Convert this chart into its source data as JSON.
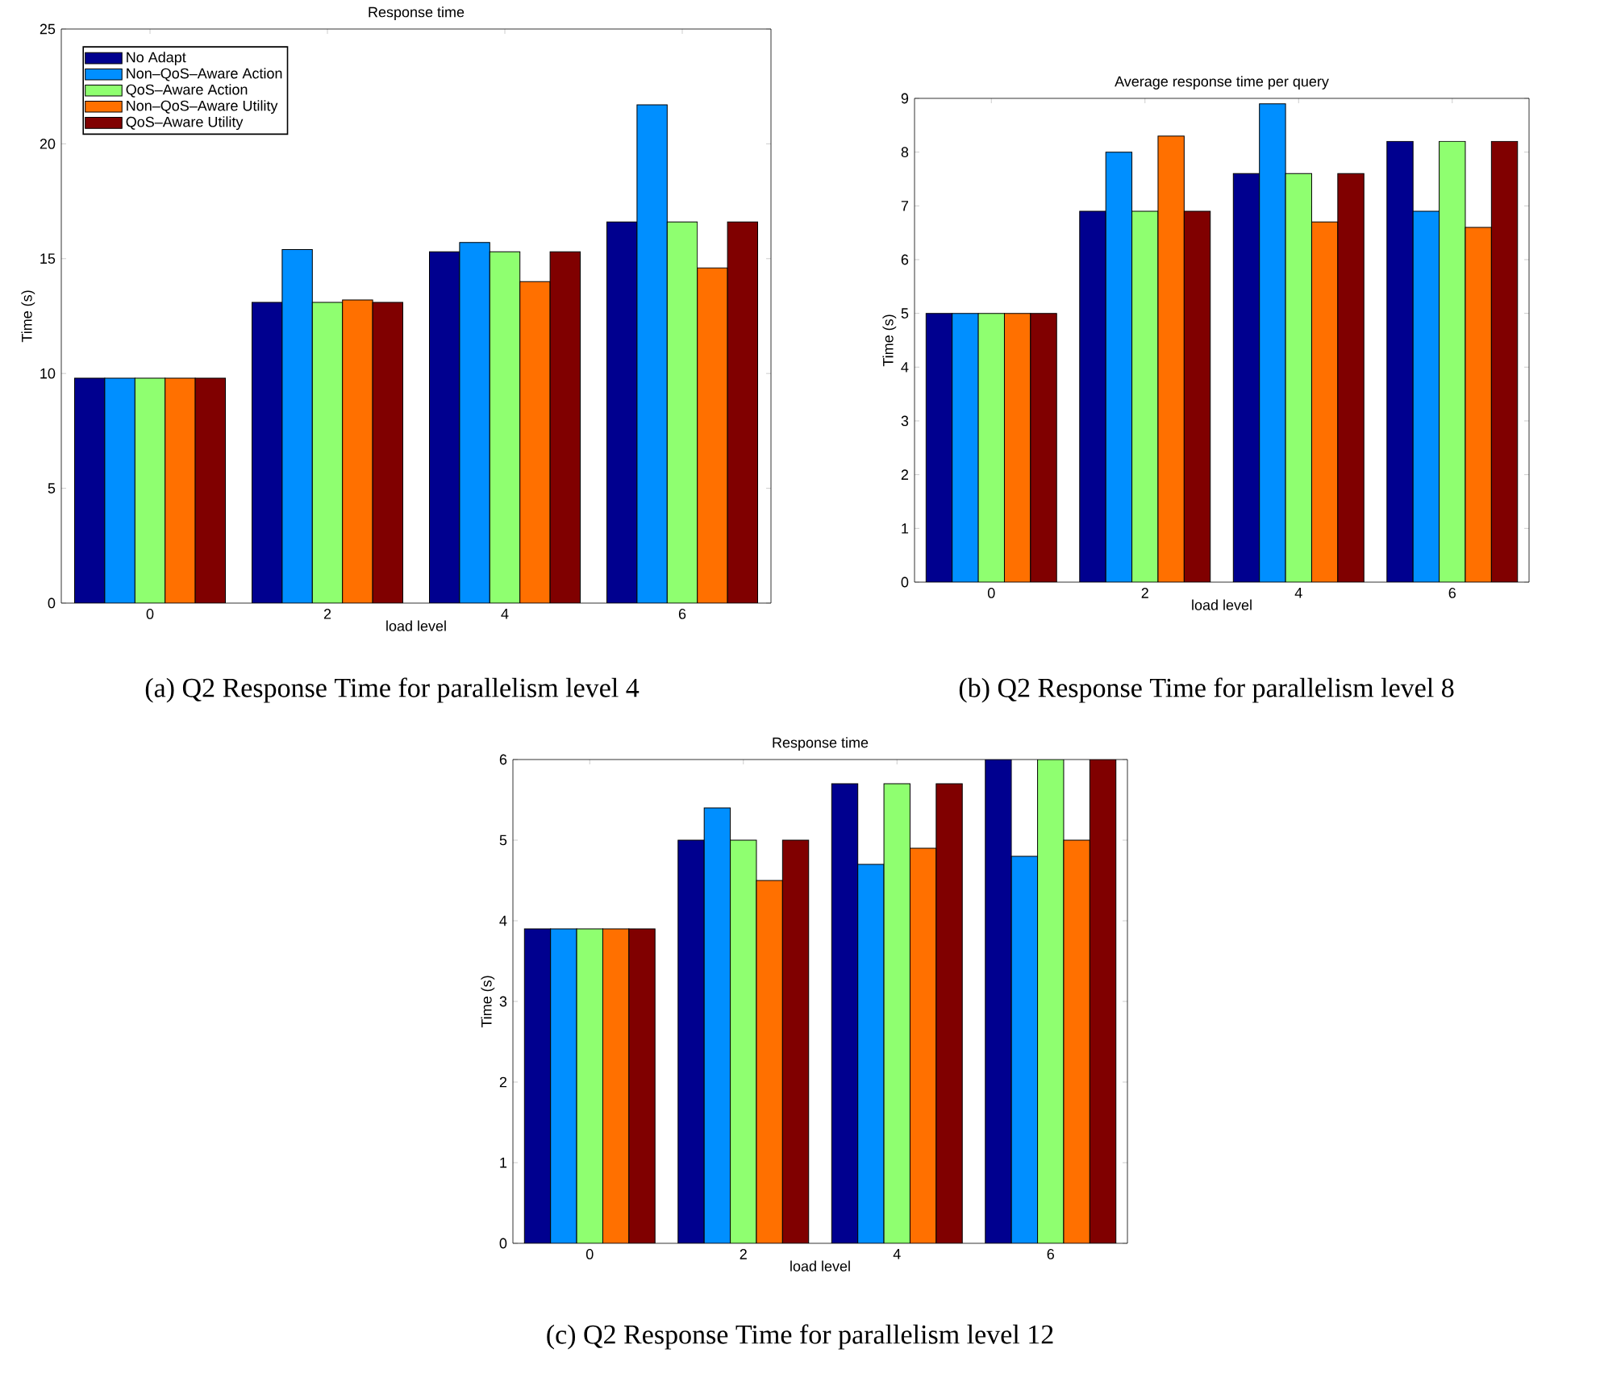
{
  "chart_data": [
    {
      "type": "bar",
      "title": "Response time",
      "xlabel": "load level",
      "ylabel": "Time (s)",
      "categories": [
        "0",
        "2",
        "4",
        "6"
      ],
      "ylim": [
        0,
        25
      ],
      "yticks": [
        0,
        5,
        10,
        15,
        20,
        25
      ],
      "legend": "top left",
      "annotations": [
        "(a) Q2 Response Time for parallelism level 4"
      ],
      "series": [
        {
          "name": "No Adapt",
          "color": "#00008f",
          "values": [
            9.8,
            13.1,
            15.3,
            16.6
          ]
        },
        {
          "name": "Non–QoS–Aware Action",
          "color": "#008fff",
          "values": [
            9.8,
            15.4,
            15.7,
            21.7
          ]
        },
        {
          "name": "QoS–Aware Action",
          "color": "#8fff70",
          "values": [
            9.8,
            13.1,
            15.3,
            16.6
          ]
        },
        {
          "name": "Non–QoS–Aware Utility",
          "color": "#ff7000",
          "values": [
            9.8,
            13.2,
            14.0,
            14.6
          ]
        },
        {
          "name": "QoS–Aware Utility",
          "color": "#800000",
          "values": [
            9.8,
            13.1,
            15.3,
            16.6
          ]
        }
      ]
    },
    {
      "type": "bar",
      "title": "Average response time per query",
      "xlabel": "load level",
      "ylabel": "Time (s)",
      "categories": [
        "0",
        "2",
        "4",
        "6"
      ],
      "ylim": [
        0,
        9
      ],
      "yticks": [
        0,
        1,
        2,
        3,
        4,
        5,
        6,
        7,
        8,
        9
      ],
      "annotations": [
        "(b) Q2 Response Time for parallelism level 8"
      ],
      "series": [
        {
          "color": "#00008f",
          "values": [
            5.0,
            6.9,
            7.6,
            8.2
          ]
        },
        {
          "color": "#008fff",
          "values": [
            5.0,
            8.0,
            8.9,
            6.9
          ]
        },
        {
          "color": "#8fff70",
          "values": [
            5.0,
            6.9,
            7.6,
            8.2
          ]
        },
        {
          "color": "#ff7000",
          "values": [
            5.0,
            8.3,
            6.7,
            6.6
          ]
        },
        {
          "color": "#800000",
          "values": [
            5.0,
            6.9,
            7.6,
            8.2
          ]
        }
      ]
    },
    {
      "type": "bar",
      "title": "Response time",
      "xlabel": "load level",
      "ylabel": "Time (s)",
      "categories": [
        "0",
        "2",
        "4",
        "6"
      ],
      "ylim": [
        0,
        6
      ],
      "yticks": [
        0,
        1,
        2,
        3,
        4,
        5,
        6
      ],
      "annotations": [
        "(c) Q2 Response Time for parallelism level 12"
      ],
      "series": [
        {
          "color": "#00008f",
          "values": [
            3.9,
            5.0,
            5.7,
            6.0
          ]
        },
        {
          "color": "#008fff",
          "values": [
            3.9,
            5.4,
            4.7,
            4.8
          ]
        },
        {
          "color": "#8fff70",
          "values": [
            3.9,
            5.0,
            5.7,
            6.0
          ]
        },
        {
          "color": "#ff7000",
          "values": [
            3.9,
            4.5,
            4.9,
            5.0
          ]
        },
        {
          "color": "#800000",
          "values": [
            3.9,
            5.0,
            5.7,
            6.0
          ]
        }
      ]
    }
  ]
}
